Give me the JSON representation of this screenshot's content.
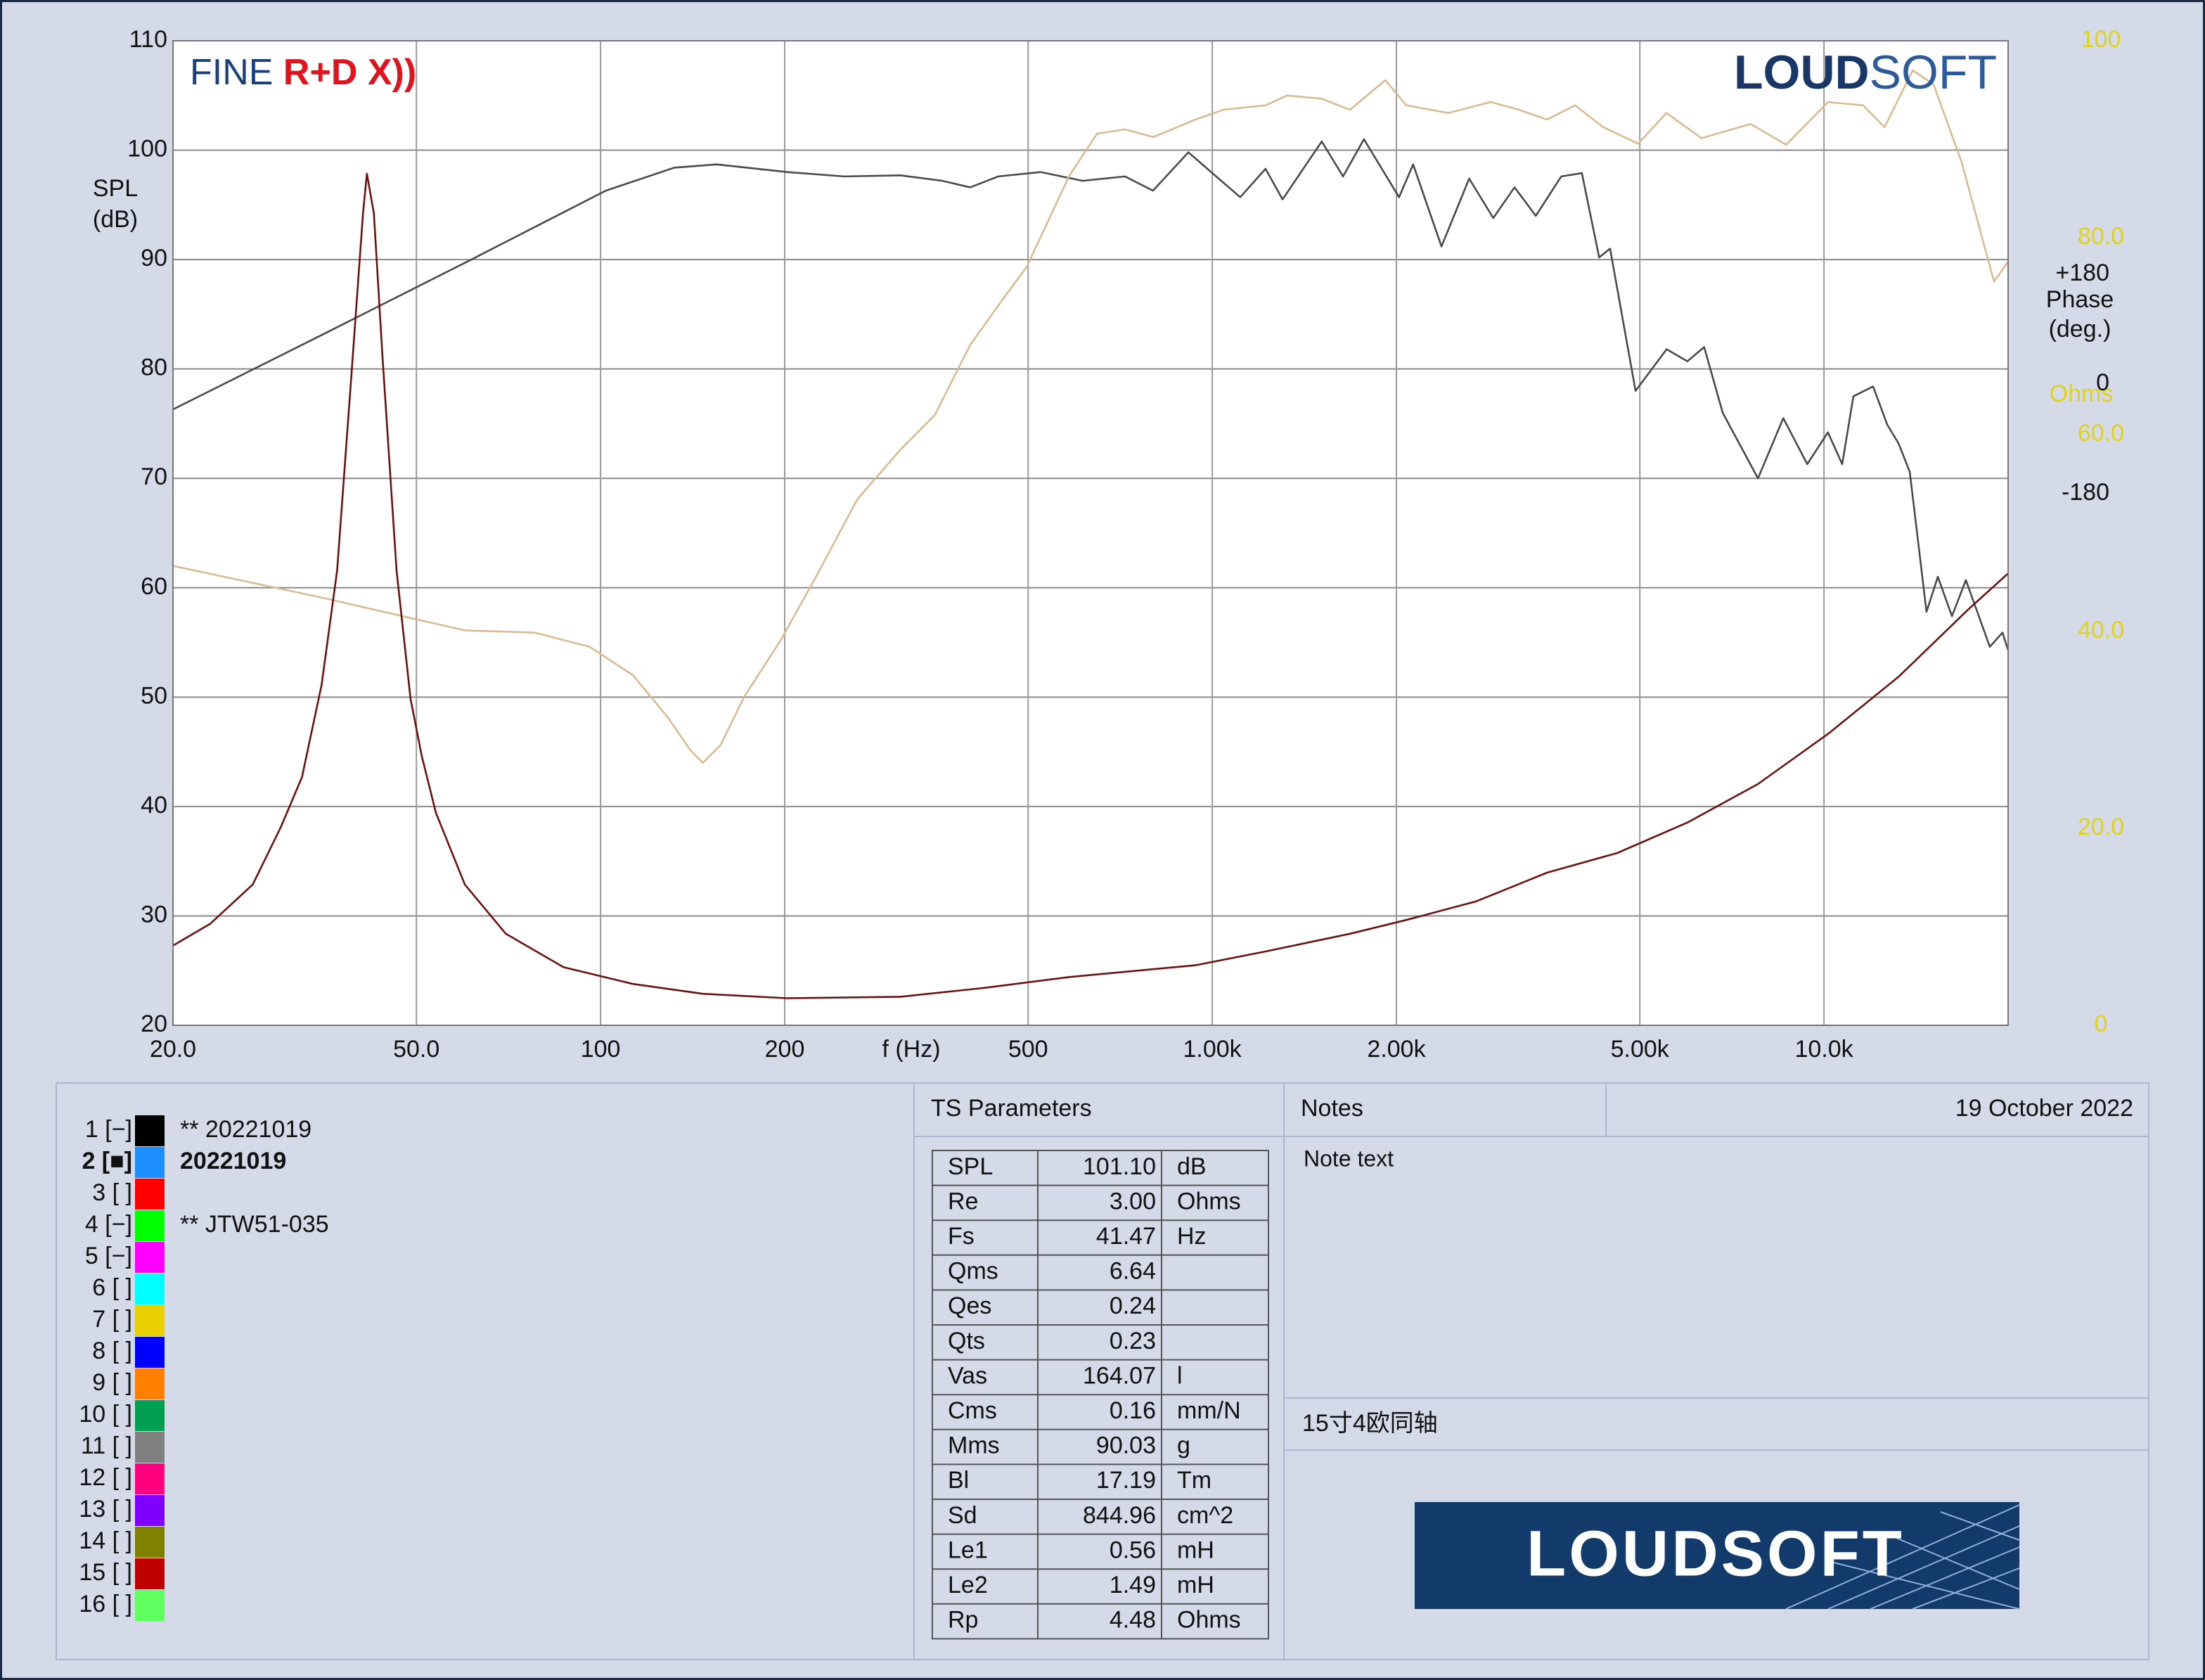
{
  "chart_data": {
    "type": "line",
    "xscale": "log",
    "xlim": [
      20,
      20000
    ],
    "xticks": [
      {
        "value": 20,
        "label": "20.0"
      },
      {
        "value": 50,
        "label": "50.0"
      },
      100,
      200,
      500,
      {
        "value": 1000,
        "label": "1.00k"
      },
      {
        "value": 2000,
        "label": "2.00k"
      },
      {
        "value": 5000,
        "label": "5.00k"
      },
      {
        "value": 10000,
        "label": "10.0k"
      }
    ],
    "x_label": "f (Hz)",
    "ylim": [
      20,
      110
    ],
    "yticks": [
      20,
      30,
      40,
      50,
      60,
      70,
      80,
      90,
      100,
      110
    ],
    "y_label": [
      "SPL",
      "(dB)"
    ],
    "y2lim": [
      0,
      100
    ],
    "y2ticks": [
      0,
      {
        "value": 20,
        "label": "20.0"
      },
      {
        "value": 40,
        "label": "40.0"
      },
      {
        "value": 60,
        "label": "60.0"
      },
      {
        "value": 80,
        "label": "80.0"
      },
      100
    ],
    "y2_label": "Ohms",
    "y2color": "#e0d21a",
    "phase_axis": {
      "label": [
        "Phase",
        "(deg.)"
      ],
      "lim": [
        -1052,
        563
      ],
      "ticks": [
        {
          "value": 180,
          "label": "+180"
        },
        0,
        -180
      ]
    },
    "grid": true,
    "series": [
      {
        "color": "#4a4a4a",
        "x": [
          20,
          35,
          60,
          102,
          132,
          155,
          202,
          250,
          309,
          362,
          402,
          447,
          524,
          614,
          720,
          800,
          914,
          1111,
          1222,
          1303,
          1510,
          1636,
          1770,
          2020,
          2130,
          2370,
          2630,
          2880,
          3120,
          3380,
          3720,
          4020,
          4290,
          4470,
          4920,
          5530,
          5980,
          6370,
          6830,
          7800,
          8580,
          9390,
          10150,
          10710,
          11170,
          12030,
          12690,
          13240,
          13810,
          14710,
          15350,
          16190,
          17060,
          18670,
          19580,
          20000
        ],
        "values": [
          76.3,
          83.1,
          89.7,
          96.3,
          98.4,
          98.7,
          98.0,
          97.6,
          97.7,
          97.2,
          96.6,
          97.6,
          98.0,
          97.2,
          97.6,
          96.3,
          99.8,
          95.7,
          98.3,
          95.5,
          100.8,
          97.6,
          101.0,
          95.7,
          98.7,
          91.2,
          97.4,
          93.8,
          96.6,
          94.0,
          97.6,
          97.9,
          90.2,
          91.0,
          78.0,
          81.8,
          80.7,
          82.0,
          76.0,
          70.0,
          75.5,
          71.3,
          74.2,
          71.3,
          77.5,
          78.4,
          74.9,
          73.2,
          70.6,
          57.8,
          61.0,
          57.4,
          60.7,
          54.6,
          55.9,
          54.3
        ]
      },
      {
        "color": "#d9bb92",
        "x": [
          20,
          35,
          60,
          78,
          96,
          113,
          129,
          140,
          147,
          157,
          172,
          197,
          225,
          263,
          309,
          352,
          402,
          459,
          497,
          583,
          648,
          720,
          801,
          939,
          1043,
          1222,
          1324,
          1510,
          1680,
          1918,
          2076,
          2432,
          2852,
          3170,
          3524,
          3918,
          4356,
          4970,
          5526,
          6308,
          7588,
          8670,
          10154,
          11588,
          12562,
          13964,
          15108,
          16790,
          18964,
          20000
        ],
        "values": [
          62.0,
          59.1,
          56.1,
          55.9,
          54.6,
          52.0,
          48.1,
          45.2,
          44.0,
          45.6,
          50.1,
          55.2,
          61.0,
          68.1,
          72.6,
          75.8,
          82.2,
          86.7,
          89.3,
          97.6,
          101.5,
          101.9,
          101.2,
          102.8,
          103.7,
          104.1,
          105.0,
          104.7,
          103.7,
          106.4,
          104.1,
          103.4,
          104.4,
          103.7,
          102.8,
          104.1,
          102.1,
          100.6,
          103.4,
          101.1,
          102.4,
          100.5,
          104.4,
          104.1,
          102.1,
          107.3,
          106.0,
          98.9,
          88.0,
          89.8
        ]
      },
      {
        "color": "#6e1010",
        "axis": "y2",
        "x": [
          20,
          23,
          27,
          30,
          32.5,
          35,
          37.1,
          39.2,
          40.9,
          41.5,
          42.6,
          44.0,
          46.4,
          48.9,
          51.0,
          53.8,
          60,
          70,
          87,
          113,
          147,
          202,
          309,
          424,
          583,
          939,
          1222,
          1680,
          2076,
          2704,
          3524,
          4592,
          5984,
          7796,
          10154,
          13240,
          17254,
          20000
        ],
        "values": [
          8.1,
          10.3,
          14.3,
          20.1,
          25.2,
          34.6,
          46.2,
          66.5,
          82.5,
          86.5,
          82.5,
          68.0,
          46.2,
          33.2,
          27.4,
          21.6,
          14.3,
          9.3,
          5.9,
          4.2,
          3.2,
          2.75,
          2.9,
          3.8,
          4.9,
          6.1,
          7.5,
          9.3,
          10.7,
          12.6,
          15.5,
          17.5,
          20.6,
          24.5,
          29.6,
          35.4,
          42.3,
          45.9
        ]
      }
    ]
  },
  "logo_left": [
    "FINE",
    "R+D X))"
  ],
  "logo_right": [
    "LOUD",
    "SOFT"
  ],
  "legend": [
    {
      "key": "1 [−]",
      "color": "#000000",
      "label": "** 20221019"
    },
    {
      "key": "2 [■]",
      "color": "#1e8fff",
      "label": "20221019",
      "bold": true
    },
    {
      "key": "3 [ ]",
      "color": "#ff0000"
    },
    {
      "key": "4 [−]",
      "color": "#00ff00",
      "label": "** JTW51-035"
    },
    {
      "key": "5 [−]",
      "color": "#ff00ff"
    },
    {
      "key": "6 [ ]",
      "color": "#00ffff"
    },
    {
      "key": "7 [ ]",
      "color": "#e8d000"
    },
    {
      "key": "8 [ ]",
      "color": "#0000ff"
    },
    {
      "key": "9 [ ]",
      "color": "#ff8000"
    },
    {
      "key": "10 [ ]",
      "color": "#00a050"
    },
    {
      "key": "11 [ ]",
      "color": "#808080"
    },
    {
      "key": "12 [ ]",
      "color": "#ff0080"
    },
    {
      "key": "13 [ ]",
      "color": "#8000ff"
    },
    {
      "key": "14 [ ]",
      "color": "#808000"
    },
    {
      "key": "15 [ ]",
      "color": "#c00000"
    },
    {
      "key": "16 [ ]",
      "color": "#60ff60"
    }
  ],
  "ts_parameters": {
    "title": "TS Parameters",
    "rows": [
      [
        "SPL",
        "101.10",
        "dB"
      ],
      [
        "Re",
        "3.00",
        "Ohms"
      ],
      [
        "Fs",
        "41.47",
        "Hz"
      ],
      [
        "Qms",
        "6.64"
      ],
      [
        "Qes",
        "0.24"
      ],
      [
        "Qts",
        "0.23"
      ],
      [
        "Vas",
        "164.07",
        "l"
      ],
      [
        "Cms",
        "0.16",
        "mm/N"
      ],
      [
        "Mms",
        "90.03",
        "g"
      ],
      [
        "Bl",
        "17.19",
        "Tm"
      ],
      [
        "Sd",
        "844.96",
        "cm^2"
      ],
      [
        "Le1",
        "0.56",
        "mH"
      ],
      [
        "Le2",
        "1.49",
        "mH"
      ],
      [
        "Rp",
        "4.48",
        "Ohms"
      ]
    ]
  },
  "notes": {
    "title": "Notes",
    "date": "19 October 2022",
    "text": "Note text",
    "description": "15寸4欧同轴"
  },
  "banner_logo": "LOUDSOFT"
}
